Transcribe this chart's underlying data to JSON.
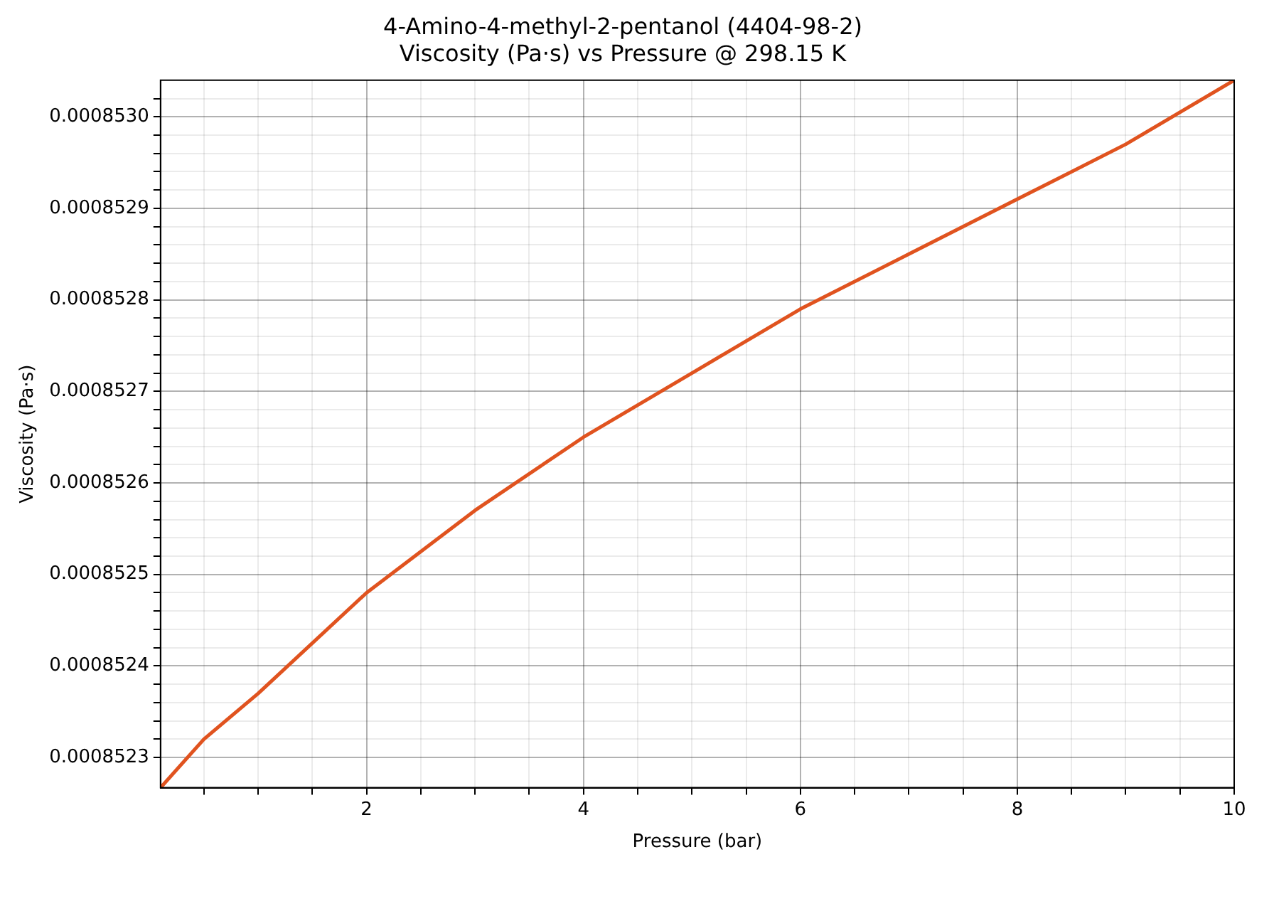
{
  "chart_data": {
    "type": "line",
    "title": "4-Amino-4-methyl-2-pentanol (4404-98-2)",
    "subtitle": "Viscosity (Pa·s) vs Pressure @ 298.15 K",
    "xlabel": "Pressure (bar)",
    "ylabel": "Viscosity (Pa·s)",
    "x": [
      0.1,
      0.5,
      1,
      2,
      3,
      4,
      5,
      6,
      7,
      8,
      9,
      10
    ],
    "series": [
      {
        "color": "#e0531f",
        "values": [
          0.000852267,
          0.00085232,
          0.00085237,
          0.00085248,
          0.00085257,
          0.00085265,
          0.00085272,
          0.00085279,
          0.00085285,
          0.00085291,
          0.00085297,
          0.00085304
        ]
      }
    ],
    "xlim": [
      0.1,
      10
    ],
    "ylim": [
      0.000852267,
      0.00085304
    ],
    "xticks": [
      {
        "value": 0.5,
        "label": null
      },
      {
        "value": 1,
        "label": null
      },
      {
        "value": 1.5,
        "label": null
      },
      2,
      {
        "value": 2.5,
        "label": null
      },
      {
        "value": 3,
        "label": null
      },
      {
        "value": 3.5,
        "label": null
      },
      4,
      {
        "value": 4.5,
        "label": null
      },
      {
        "value": 5,
        "label": null
      },
      {
        "value": 5.5,
        "label": null
      },
      6,
      {
        "value": 6.5,
        "label": null
      },
      {
        "value": 7,
        "label": null
      },
      {
        "value": 7.5,
        "label": null
      },
      8,
      {
        "value": 8.5,
        "label": null
      },
      {
        "value": 9,
        "label": null
      },
      {
        "value": 9.5,
        "label": null
      },
      10
    ],
    "yticks": [
      0.0008523,
      {
        "value": 0.00085232,
        "label": null
      },
      {
        "value": 0.00085234,
        "label": null
      },
      {
        "value": 0.00085236,
        "label": null
      },
      {
        "value": 0.00085238,
        "label": null
      },
      0.0008524,
      {
        "value": 0.00085242,
        "label": null
      },
      {
        "value": 0.00085244,
        "label": null
      },
      {
        "value": 0.00085246,
        "label": null
      },
      {
        "value": 0.00085248,
        "label": null
      },
      0.0008525,
      {
        "value": 0.00085252,
        "label": null
      },
      {
        "value": 0.00085254,
        "label": null
      },
      {
        "value": 0.00085256,
        "label": null
      },
      {
        "value": 0.00085258,
        "label": null
      },
      0.0008526,
      {
        "value": 0.00085262,
        "label": null
      },
      {
        "value": 0.00085264,
        "label": null
      },
      {
        "value": 0.00085266,
        "label": null
      },
      {
        "value": 0.00085268,
        "label": null
      },
      0.0008527,
      {
        "value": 0.00085272,
        "label": null
      },
      {
        "value": 0.00085274,
        "label": null
      },
      {
        "value": 0.00085276,
        "label": null
      },
      {
        "value": 0.00085278,
        "label": null
      },
      0.0008528,
      {
        "value": 0.00085282,
        "label": null
      },
      {
        "value": 0.00085284,
        "label": null
      },
      {
        "value": 0.00085286,
        "label": null
      },
      {
        "value": 0.00085288,
        "label": null
      },
      0.0008529,
      {
        "value": 0.00085292,
        "label": null
      },
      {
        "value": 0.00085294,
        "label": null
      },
      {
        "value": 0.00085296,
        "label": null
      },
      {
        "value": 0.00085298,
        "label": null
      },
      {
        "value": 0.000853,
        "label": "0.0008530"
      },
      {
        "value": 0.00085302,
        "label": null
      }
    ],
    "grid": true,
    "legend": false,
    "marker": "none",
    "line_style": "solid"
  }
}
